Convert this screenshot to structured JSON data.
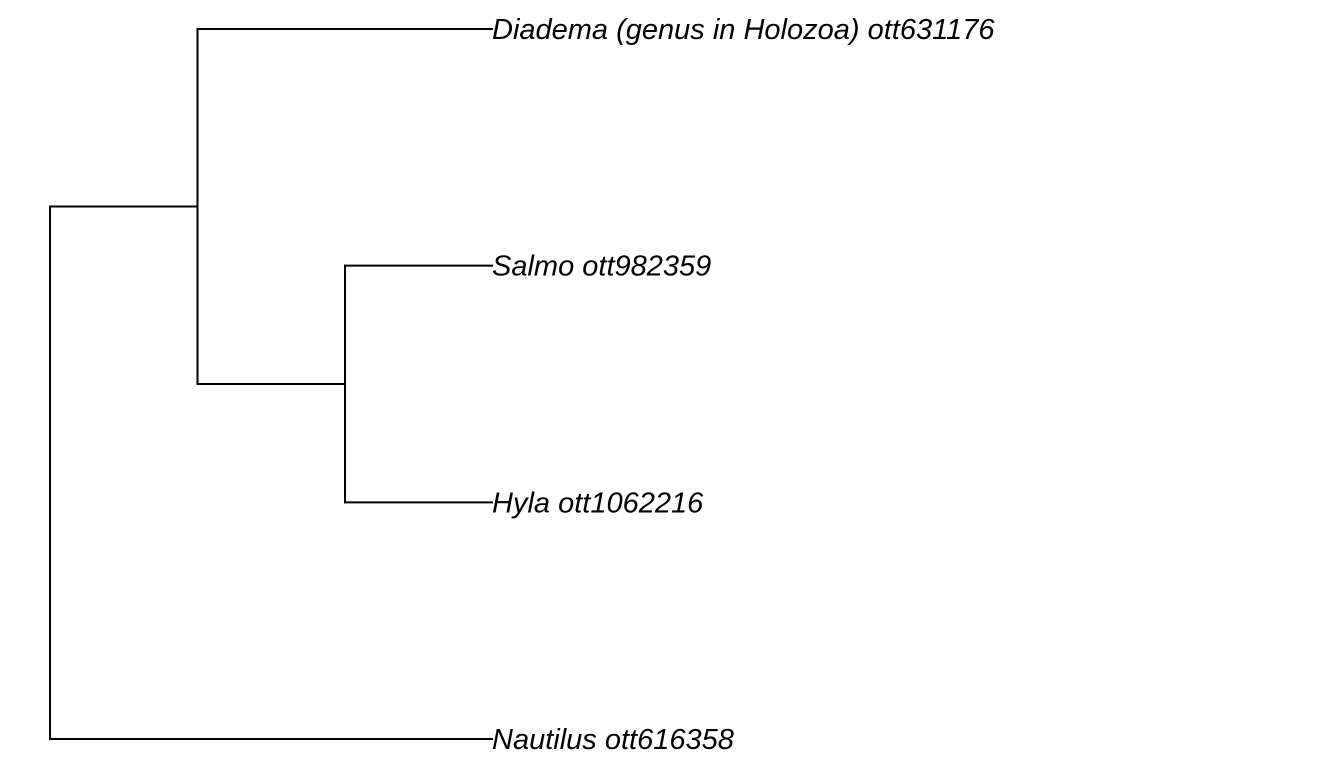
{
  "tree": {
    "type": "phylogeny",
    "line_color": "#000000",
    "background": "#ffffff",
    "structure": {
      "children": [
        {
          "children": [
            {
              "tip": 0
            },
            {
              "children": [
                {
                  "tip": 1
                },
                {
                  "tip": 2
                }
              ]
            }
          ]
        },
        {
          "tip": 3
        }
      ]
    },
    "tips": [
      {
        "label": "Diadema (genus in Holozoa) ott631176"
      },
      {
        "label": "Salmo ott982359"
      },
      {
        "label": "Hyla ott1062216"
      },
      {
        "label": "Nautilus ott616358"
      }
    ]
  }
}
